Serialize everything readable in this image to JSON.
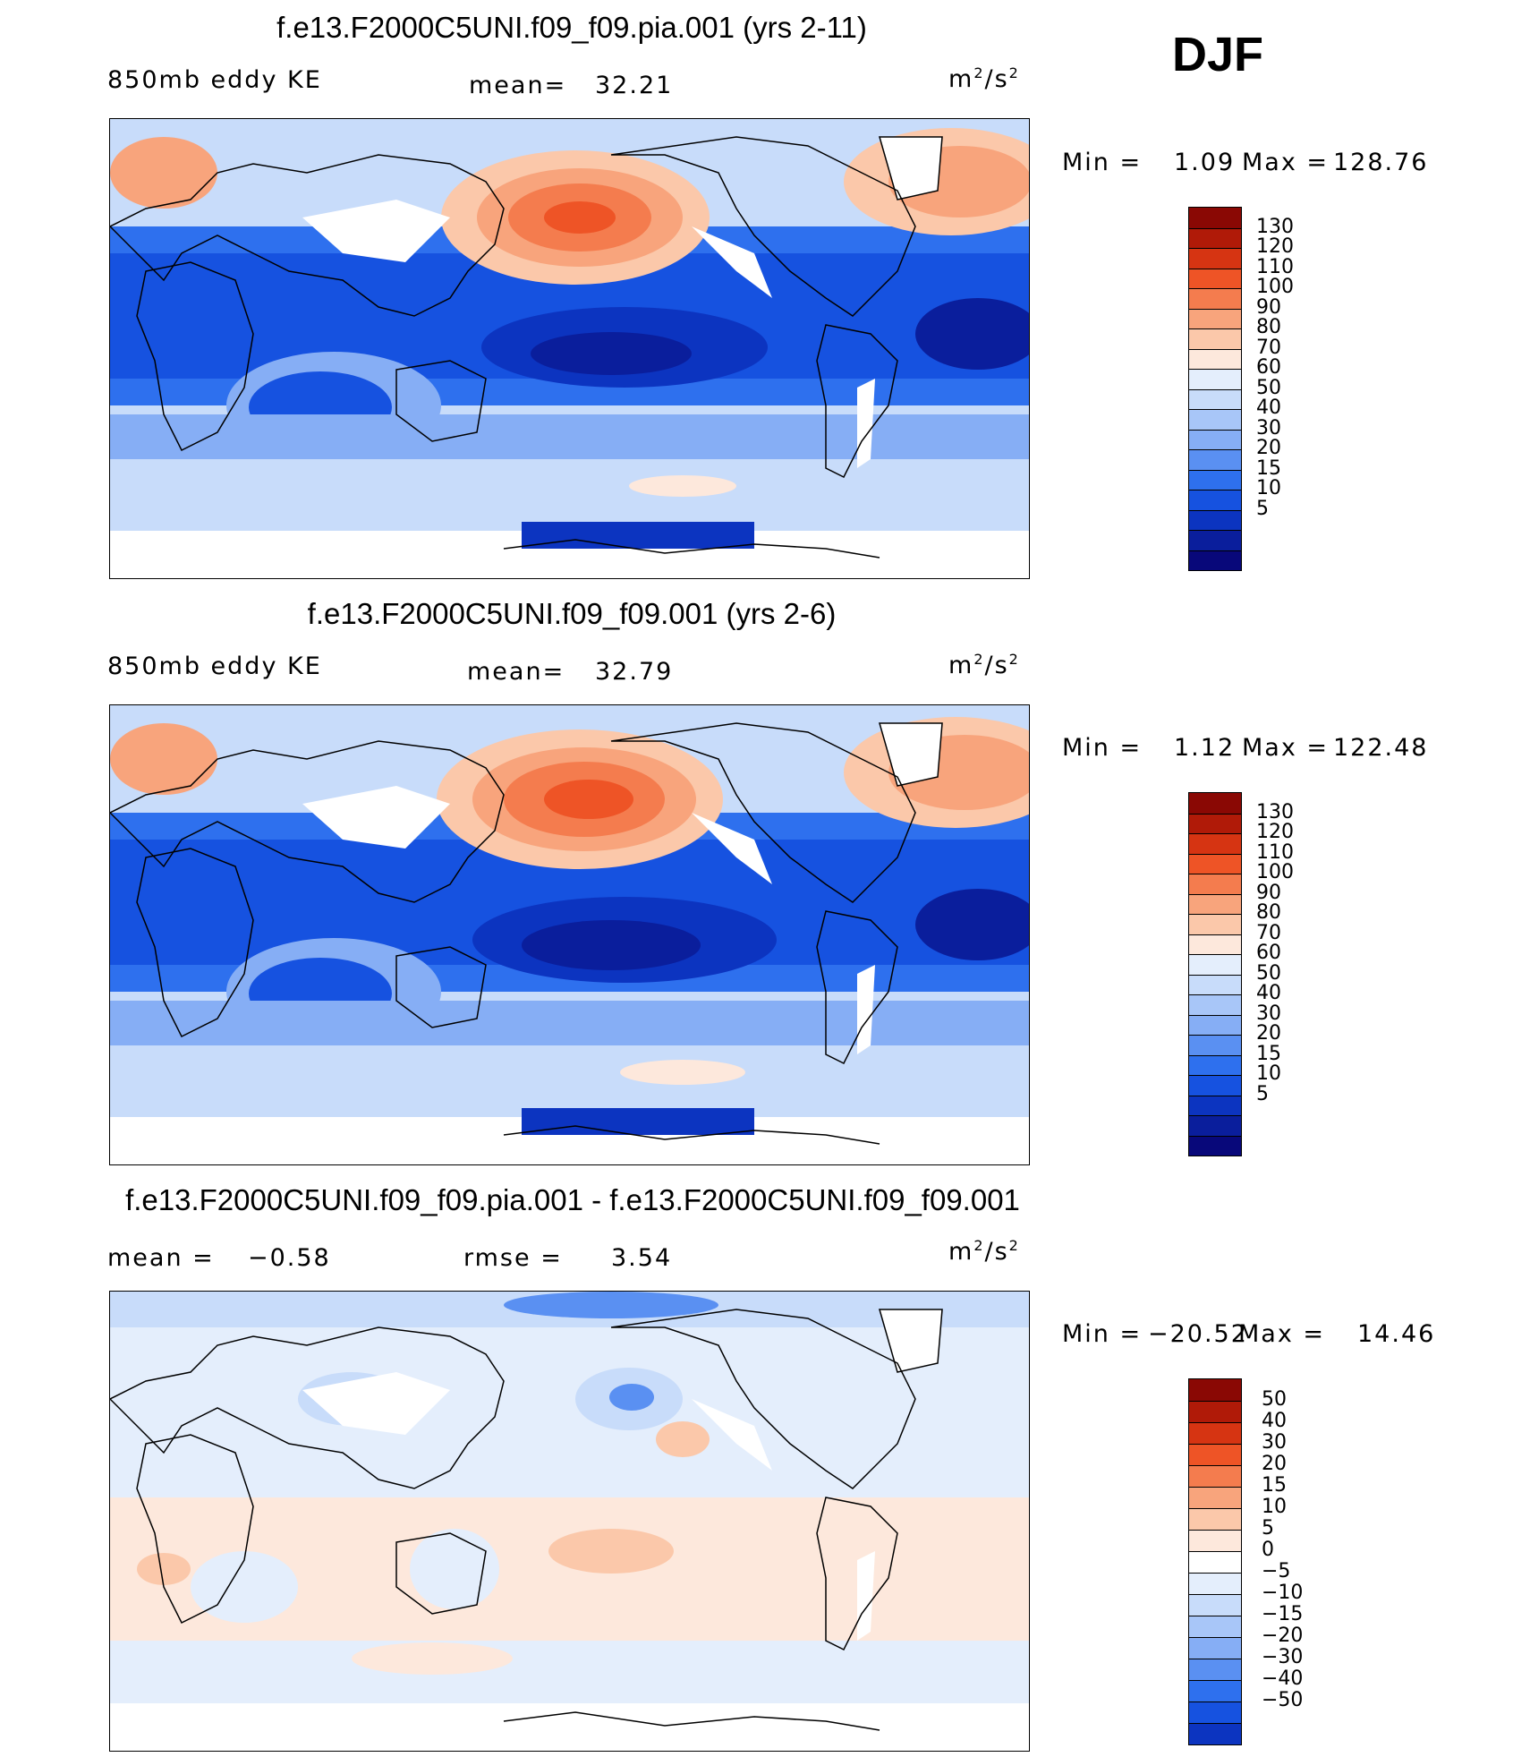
{
  "season": "DJF",
  "colors": {
    "ke": [
      "#08087a",
      "#0a1e9c",
      "#0c34c0",
      "#1652e0",
      "#2e70ee",
      "#5a90f2",
      "#86aef5",
      "#a8c6f8",
      "#c8dcfa",
      "#e4eefc",
      "#fde8dc",
      "#fbc8aa",
      "#f8a47c",
      "#f47c4e",
      "#ee5426",
      "#d63412",
      "#b01a08",
      "#8a0804"
    ],
    "diff": [
      "#08087a",
      "#0a1e9c",
      "#0c34c0",
      "#1652e0",
      "#2e70ee",
      "#5a90f2",
      "#86aef5",
      "#a8c6f8",
      "#c8dcfa",
      "#e4eefc",
      "#ffffff",
      "#fde8dc",
      "#fbc8aa",
      "#f8a47c",
      "#f47c4e",
      "#ee5426",
      "#d63412",
      "#b01a08",
      "#8a0804"
    ]
  },
  "panels": [
    {
      "title": "f.e13.F2000C5UNI.f09_f09.pia.001 (yrs 2-11)",
      "left_label": "850mb eddy KE",
      "mid_label": "mean=",
      "mid_value": "32.21",
      "right_value": "",
      "units_base": "m",
      "units_exp1": "2",
      "units_mid": "/s",
      "units_exp2": "2",
      "stats": {
        "min_label": "Min =",
        "min": "1.09",
        "max_label": "Max =",
        "max": "128.76"
      },
      "colorbar_labels": [
        "130",
        "120",
        "110",
        "100",
        "90",
        "80",
        "70",
        "60",
        "50",
        "40",
        "30",
        "20",
        "15",
        "10",
        "5"
      ]
    },
    {
      "title": "f.e13.F2000C5UNI.f09_f09.001 (yrs 2-6)",
      "left_label": "850mb eddy KE",
      "mid_label": "mean=",
      "mid_value": "32.79",
      "right_value": "",
      "units_base": "m",
      "units_exp1": "2",
      "units_mid": "/s",
      "units_exp2": "2",
      "stats": {
        "min_label": "Min =",
        "min": "1.12",
        "max_label": "Max =",
        "max": "122.48"
      },
      "colorbar_labels": [
        "130",
        "120",
        "110",
        "100",
        "90",
        "80",
        "70",
        "60",
        "50",
        "40",
        "30",
        "20",
        "15",
        "10",
        "5"
      ]
    },
    {
      "title": "f.e13.F2000C5UNI.f09_f09.pia.001 - f.e13.F2000C5UNI.f09_f09.001",
      "left_label": "mean =",
      "left_value": "−0.58",
      "mid_label": "rmse =",
      "mid_value": "3.54",
      "units_base": "m",
      "units_exp1": "2",
      "units_mid": "/s",
      "units_exp2": "2",
      "stats": {
        "min_label": "Min =",
        "min": "−20.52",
        "max_label": "Max =",
        "max": "14.46"
      },
      "colorbar_labels": [
        "50",
        "40",
        "30",
        "20",
        "15",
        "10",
        "5",
        "0",
        "−5",
        "−10",
        "−15",
        "−20",
        "−30",
        "−40",
        "−50"
      ]
    }
  ]
}
